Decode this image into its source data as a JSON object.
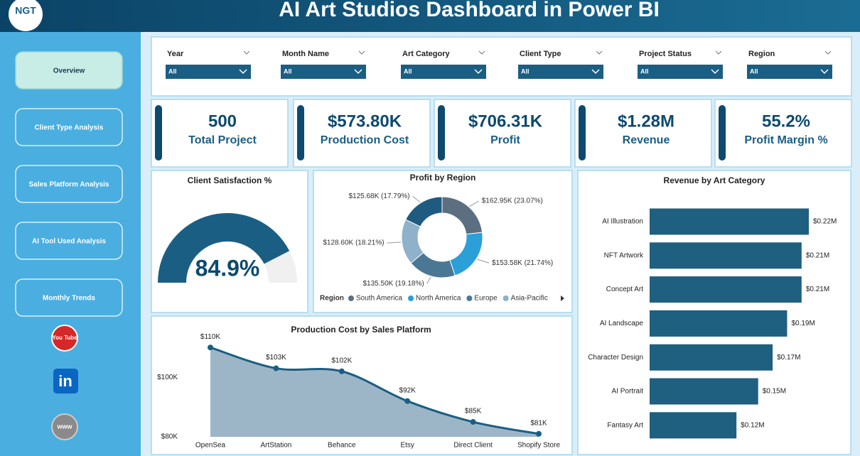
{
  "header": {
    "logo": "NGT",
    "title": "AI Art Studios Dashboard in Power BI"
  },
  "nav": [
    "Overview",
    "Client Type Analysis",
    "Sales Platform Analysis",
    "AI Tool Used Analysis",
    "Monthly Trends"
  ],
  "social": [
    "You Tube",
    "in",
    "www"
  ],
  "filters": [
    {
      "label": "Year",
      "value": "All"
    },
    {
      "label": "Month Name",
      "value": "All"
    },
    {
      "label": "Art Category",
      "value": "All"
    },
    {
      "label": "Client Type",
      "value": "All"
    },
    {
      "label": "Project Status",
      "value": "All"
    },
    {
      "label": "Region",
      "value": "All"
    }
  ],
  "kpis": [
    {
      "value": "500",
      "label": "Total Project"
    },
    {
      "value": "$573.80K",
      "label": "Production Cost"
    },
    {
      "value": "$706.31K",
      "label": "Profit"
    },
    {
      "value": "$1.28M",
      "label": "Revenue"
    },
    {
      "value": "55.2%",
      "label": "Profit Margin %"
    }
  ],
  "chart_data": [
    {
      "type": "gauge",
      "title": "Client Satisfaction %",
      "value": 84.9,
      "value_label": "84.9%",
      "ylim": [
        0,
        100
      ],
      "color": "#1a5e84"
    },
    {
      "type": "donut",
      "title": "Profit by Region",
      "legend_title": "Region",
      "categories": [
        "South America",
        "North America",
        "Europe",
        "Asia-Pacific",
        null
      ],
      "values": [
        162.95,
        153.58,
        135.5,
        128.6,
        125.68
      ],
      "value_labels": [
        "$162.95K (23.07%)",
        "$153.58K (21.74%)",
        "$135.50K (19.18%)",
        "$128.60K (18.21%)",
        "$125.68K (17.79%)"
      ],
      "colors": [
        "#5b6f80",
        "#2a9fd8",
        "#4a7894",
        "#8fb1c9",
        "#1f5b80"
      ]
    },
    {
      "type": "hbar",
      "title": "Revenue by Art Category",
      "categories": [
        "AI Illustration",
        "NFT Artwork",
        "Concept Art",
        "AI Landscape",
        "Character Design",
        "AI Portrait",
        "Fantasy Art"
      ],
      "values": [
        0.22,
        0.21,
        0.21,
        0.19,
        0.17,
        0.15,
        0.12
      ],
      "value_labels": [
        "$0.22M",
        "$0.21M",
        "$0.21M",
        "$0.19M",
        "$0.17M",
        "$0.15M",
        "$0.12M"
      ],
      "xlim": [
        0,
        0.22
      ],
      "color": "#1f5f80"
    },
    {
      "type": "area",
      "title": "Production Cost by Sales Platform",
      "categories": [
        "OpenSea",
        "ArtStation",
        "Behance",
        "Etsy",
        "Direct Client",
        "Shopify Store"
      ],
      "values": [
        110,
        103,
        102,
        92,
        85,
        81
      ],
      "value_labels": [
        "$110K",
        "$103K",
        "$102K",
        "$92K",
        "$85K",
        "$81K"
      ],
      "ylim": [
        80,
        111
      ],
      "yticks": [
        {
          "value": 100,
          "label": "$100K"
        },
        {
          "value": 80,
          "label": "$80K"
        }
      ],
      "color": "#1a5e84",
      "fill": "#9db6c7"
    }
  ]
}
